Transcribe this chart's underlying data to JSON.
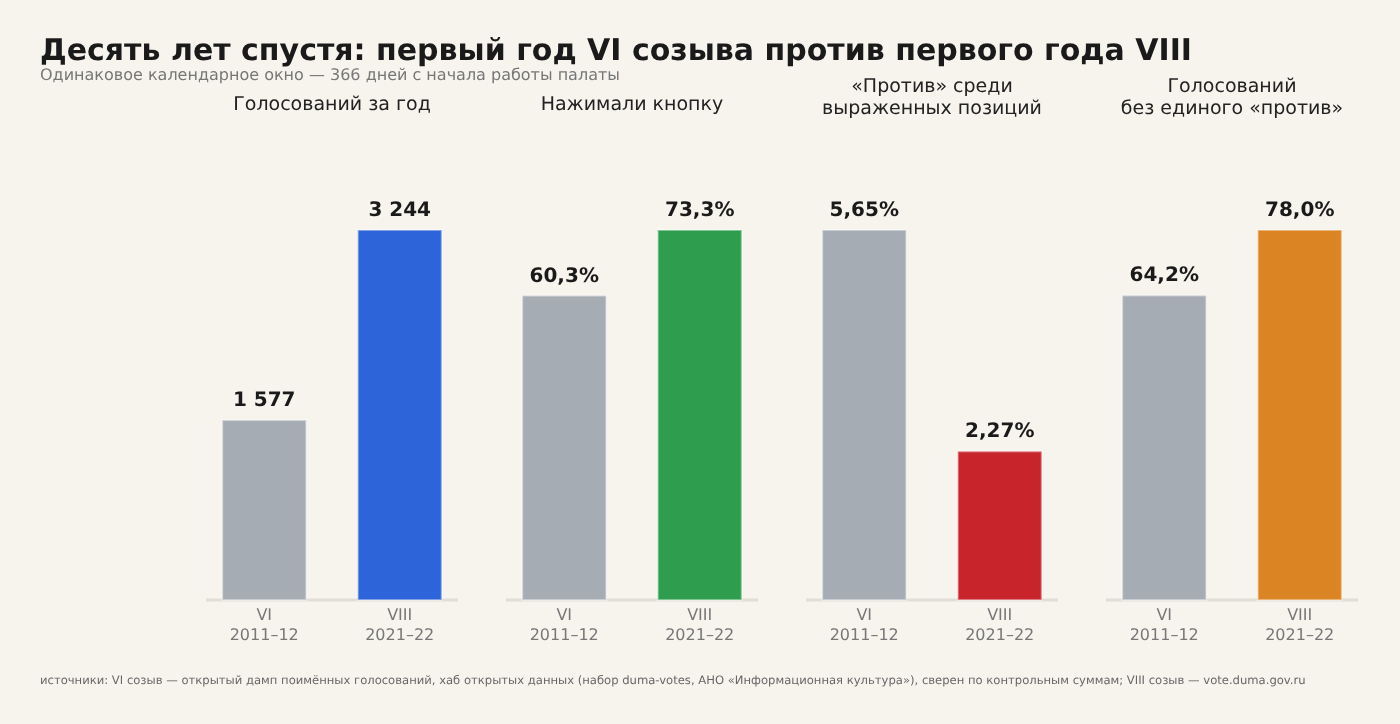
{
  "chart_data": [
    {
      "type": "other",
      "title": "Десять лет спустя: первый год VI созыва против первого года VIII",
      "subtitle": "Одинаковое календарное окно — 366 дней с начала работы палаты",
      "annotations": [
        "источники: VI созыв — открытый дамп поимённых голосований, хаб открытых данных (набор duma-votes, АНО «Информационная культура»), сверен по контрольным суммам; VIII созыв — vote.duma.gov.ru"
      ]
    },
    {
      "type": "bar",
      "title": "Голосований за год",
      "categories": [
        "VI\n2011–12",
        "VIII\n2021–22"
      ],
      "values": [
        1577,
        3244
      ],
      "colors": [
        "#a6acb3",
        "#2d64d9"
      ],
      "value_labels": [
        "1 577",
        "3 244"
      ]
    },
    {
      "type": "bar",
      "title": "Нажимали кнопку",
      "categories": [
        "VI\n2011–12",
        "VIII\n2021–22"
      ],
      "values": [
        60.3,
        73.3
      ],
      "colors": [
        "#a6acb3",
        "#2e9e4e"
      ],
      "value_labels": [
        "60,3%",
        "73,3%"
      ]
    },
    {
      "type": "bar",
      "title": "«Против» среди\nвыраженных позиций",
      "categories": [
        "VI\n2011–12",
        "VIII\n2021–22"
      ],
      "values": [
        5.65,
        2.27
      ],
      "colors": [
        "#a6acb3",
        "#c8242c"
      ],
      "value_labels": [
        "5,65%",
        "2,27%"
      ]
    },
    {
      "type": "bar",
      "title": "Голосований\nбез единого «против»",
      "categories": [
        "VI\n2011–12",
        "VIII\n2021–22"
      ],
      "values": [
        64.2,
        78.0
      ],
      "colors": [
        "#a6acb3",
        "#da8423"
      ],
      "value_labels": [
        "64,2%",
        "78,0%"
      ]
    }
  ]
}
